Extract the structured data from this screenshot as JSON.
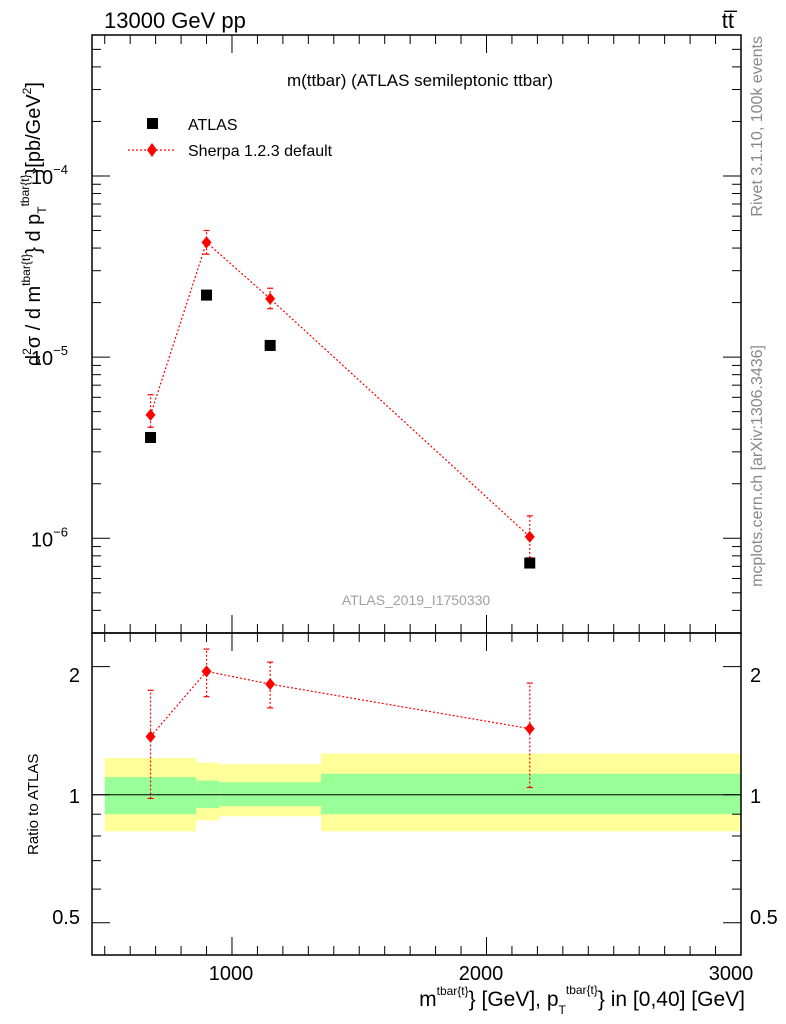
{
  "header": {
    "left": "13000 GeV pp",
    "right": "tt̅"
  },
  "side_labels": {
    "rivet": "Rivet 3.1.10,  100k events",
    "mcplots": "mcplots.cern.ch [arXiv:1306.3436]"
  },
  "main_panel": {
    "title": "m(ttbar) (ATLAS semileptonic ttbar)",
    "watermark": "ATLAS_2019_I1750330",
    "ylabel": {
      "lead": "d",
      "sup2": "2",
      "sigma": "σ / d m",
      "sup_tbar": "tbar{t}",
      "mid": "} d p",
      "sub_T": "T",
      "sup_tbar2": "tbar{t}",
      "tail": "}[pb/GeV",
      "sup_2": "2",
      "end": "]"
    },
    "y_tick_labels": [
      {
        "base": "10",
        "exp": "−4",
        "value": 0.0001
      },
      {
        "base": "10",
        "exp": "−5",
        "value": 1e-05
      },
      {
        "base": "10",
        "exp": "−6",
        "value": 1e-06
      }
    ],
    "legend": [
      {
        "label": "ATLAS",
        "marker": "square",
        "color": "#000000"
      },
      {
        "label": "Sherpa 1.2.3 default",
        "marker": "diamond",
        "color": "#ff0000"
      }
    ]
  },
  "ratio_panel": {
    "ylabel": "Ratio to ATLAS",
    "y_tick_labels_left": [
      "2",
      "1",
      "0.5"
    ],
    "y_tick_labels_right": [
      "2",
      "1",
      "0.5"
    ]
  },
  "xaxis": {
    "tick_labels": [
      "1000",
      "2000",
      "3000"
    ],
    "label": {
      "m": "m",
      "sup1": "tbar{t}",
      "mid1": "} [GeV], p",
      "sub_T": "T",
      "sup2": "tbar{t}",
      "tail": "} in [0,40] [GeV]"
    }
  },
  "colors": {
    "atlas": "#000000",
    "sherpa": "#ff0000",
    "band_inner": "#99ff99",
    "band_outer": "#ffff99"
  },
  "chart_data": [
    {
      "type": "scatter",
      "title": "m(ttbar) (ATLAS semileptonic ttbar)",
      "yscale": "log",
      "xlim": [
        450,
        3000
      ],
      "ylim": [
        3e-07,
        0.0006
      ],
      "series": [
        {
          "name": "ATLAS",
          "x": [
            680,
            900,
            1150,
            2170
          ],
          "y": [
            3.6e-06,
            2.2e-05,
            1.16e-05,
            7.3e-07
          ]
        },
        {
          "name": "Sherpa 1.2.3 default",
          "x": [
            680,
            900,
            1150,
            2170
          ],
          "y": [
            4.8e-06,
            4.3e-05,
            2.1e-05,
            1.02e-06
          ],
          "yerr_low": [
            4.1e-06,
            3.7e-05,
            1.85e-05,
            7.8e-07
          ],
          "yerr_high": [
            6.2e-06,
            5e-05,
            2.4e-05,
            1.33e-06
          ]
        }
      ]
    },
    {
      "type": "scatter",
      "ylabel": "Ratio to ATLAS",
      "yscale": "log",
      "xlim": [
        450,
        3000
      ],
      "ylim": [
        0.42,
        2.4
      ],
      "series": [
        {
          "name": "Sherpa 1.2.3 default",
          "x": [
            680,
            900,
            1150,
            2170
          ],
          "y": [
            1.37,
            1.95,
            1.82,
            1.43
          ],
          "yerr_low": [
            0.98,
            1.7,
            1.6,
            1.04
          ],
          "yerr_high": [
            1.76,
            2.2,
            2.05,
            1.83
          ]
        }
      ],
      "reference_line": 1,
      "bands": {
        "x_edges": [
          500,
          860,
          950,
          1350,
          3000
        ],
        "inner_low": [
          0.9,
          0.93,
          0.94,
          0.9
        ],
        "inner_high": [
          1.1,
          1.08,
          1.07,
          1.12
        ],
        "outer_low": [
          0.82,
          0.87,
          0.89,
          0.82
        ],
        "outer_high": [
          1.22,
          1.19,
          1.18,
          1.25
        ]
      }
    }
  ]
}
